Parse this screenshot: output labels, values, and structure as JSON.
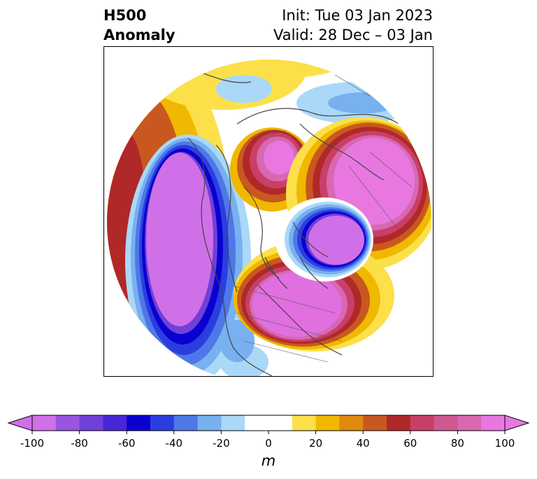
{
  "title": {
    "left_line1": "H500",
    "left_line2": "Anomaly",
    "right_line1": "Init: Tue 03 Jan 2023",
    "right_line2": "Valid: 28 Dec – 03 Jan"
  },
  "colorbar": {
    "unit": "m",
    "ticks": [
      "-100",
      "-80",
      "-60",
      "-40",
      "-20",
      "0",
      "20",
      "40",
      "60",
      "80",
      "100"
    ],
    "colors": [
      "#d070e8",
      "#9a55e0",
      "#7040d8",
      "#4a26d8",
      "#0a00d0",
      "#2a3ee0",
      "#4e78e8",
      "#78b0f0",
      "#aad8f8",
      "#ffffff",
      "#ffffff",
      "#fbe04a",
      "#f0b800",
      "#e08a10",
      "#c85820",
      "#b02828",
      "#c84068",
      "#d05890",
      "#d868b0",
      "#e878e0"
    ]
  },
  "colors": {
    "neg_strong": "#d070e8",
    "neg_blue": "#0a00d0",
    "pos_strong": "#e070e0",
    "pos_red": "#b02828",
    "pos_orange": "#c85820",
    "pos_yellow": "#f0b800",
    "coast": "#444444"
  }
}
